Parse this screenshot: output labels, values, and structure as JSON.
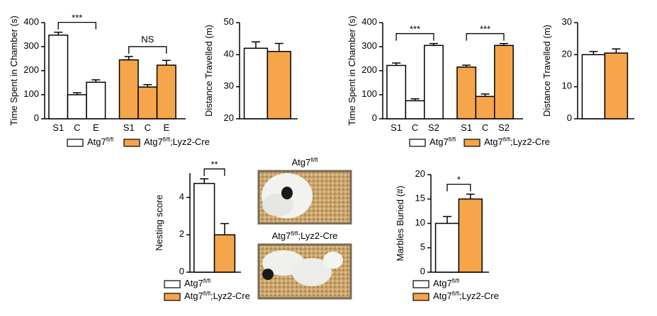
{
  "chart_data": [
    {
      "type": "grouped-bar",
      "y_label": "Time Spent in Chamber (s)",
      "categories": [
        "S1",
        "C",
        "E"
      ],
      "series": [
        {
          "name": "Atg7fl/fl",
          "color": "#ffffff",
          "values": [
            348,
            100,
            152
          ],
          "errors": [
            12,
            8,
            10
          ]
        },
        {
          "name": "Atg7fl/fl;Lyz2-Cre",
          "color": "#f6a54b",
          "values": [
            245,
            132,
            223
          ],
          "errors": [
            14,
            10,
            20
          ]
        }
      ],
      "annotations": [
        "***",
        "NS"
      ],
      "ylim": [
        0,
        400
      ],
      "yticks": [
        0,
        100,
        200,
        300,
        400
      ],
      "legend": "bottom"
    },
    {
      "type": "bar",
      "y_label": "Distance Travelled (m)",
      "values": [
        42,
        41
      ],
      "errors": [
        2,
        2.5
      ],
      "colors": [
        "#ffffff",
        "#f6a54b"
      ],
      "ylim": [
        20,
        50
      ],
      "yticks": [
        20,
        30,
        40,
        50
      ]
    },
    {
      "type": "grouped-bar",
      "y_label": "Time Spent in Chamber (s)",
      "categories": [
        "S1",
        "C",
        "S2"
      ],
      "series": [
        {
          "name": "Atg7fl/fl",
          "color": "#ffffff",
          "values": [
            222,
            75,
            305
          ],
          "errors": [
            10,
            8,
            8
          ]
        },
        {
          "name": "Atg7fl/fl;Lyz2-Cre",
          "color": "#f6a54b",
          "values": [
            215,
            93,
            305
          ],
          "errors": [
            8,
            10,
            8
          ]
        }
      ],
      "annotations": [
        "***",
        "***"
      ],
      "ylim": [
        0,
        400
      ],
      "yticks": [
        0,
        100,
        200,
        300,
        400
      ],
      "legend": "bottom"
    },
    {
      "type": "bar",
      "y_label": "Distance Travelled (m)",
      "values": [
        20,
        20.5
      ],
      "errors": [
        1,
        1.3
      ],
      "colors": [
        "#ffffff",
        "#f6a54b"
      ],
      "ylim": [
        0,
        30
      ],
      "yticks": [
        0,
        10,
        20,
        30
      ]
    },
    {
      "type": "bar",
      "y_label": "Nesting score",
      "series": [
        {
          "name": "Atg7fl/fl",
          "color": "#ffffff",
          "values": [
            4.75
          ],
          "errors": [
            0.25
          ]
        },
        {
          "name": "Atg7fl/fl;Lyz2-Cre",
          "color": "#f6a54b",
          "values": [
            2.0
          ],
          "errors": [
            0.6
          ]
        }
      ],
      "annotations": [
        "**"
      ],
      "ylim": [
        0,
        5.3
      ],
      "yticks": [
        0,
        2,
        4
      ],
      "legend": "bottom"
    },
    {
      "type": "bar",
      "y_label": "Marbles Buried (#)",
      "series": [
        {
          "name": "Atg7fl/fl",
          "color": "#ffffff",
          "values": [
            10
          ],
          "errors": [
            1.4
          ]
        },
        {
          "name": "Atg7fl/fl;Lyz2-Cre",
          "color": "#f6a54b",
          "values": [
            15
          ],
          "errors": [
            1.0
          ]
        }
      ],
      "annotations": [
        "*"
      ],
      "ylim": [
        0,
        20
      ],
      "yticks": [
        0,
        5,
        10,
        15,
        20
      ],
      "legend": "bottom"
    }
  ],
  "photos": [
    {
      "label": "Atg7fl/fl"
    },
    {
      "label": "Atg7fl/fl;Lyz2-Cre"
    }
  ]
}
